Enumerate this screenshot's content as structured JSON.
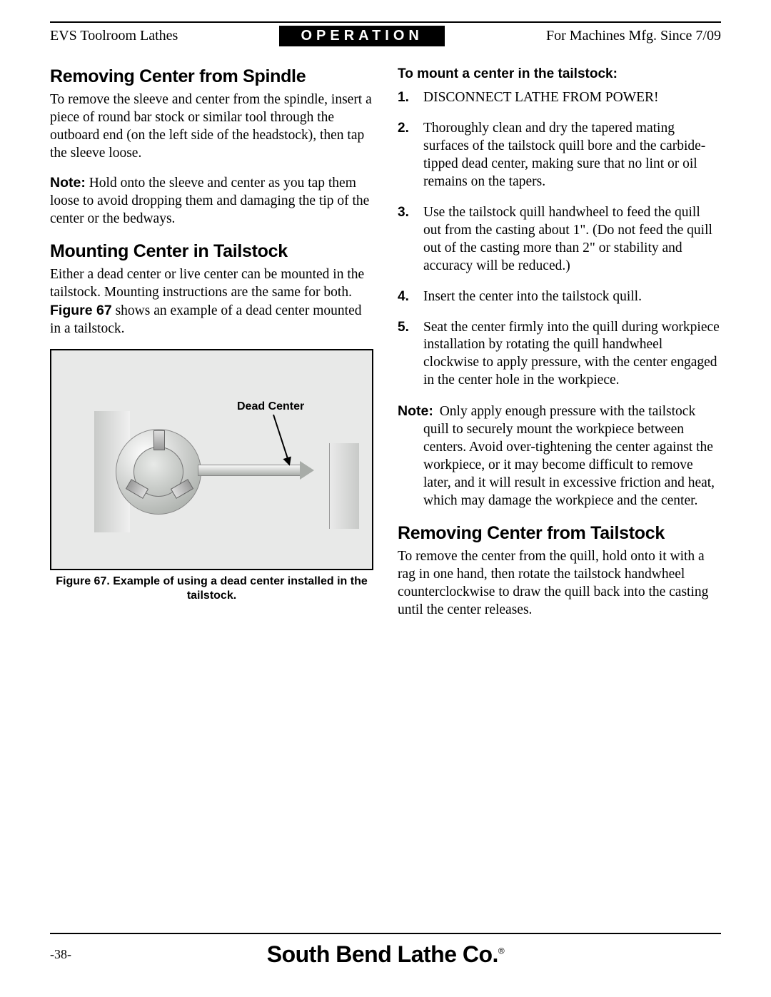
{
  "header": {
    "left": "EVS Toolroom Lathes",
    "center": "OPERATION",
    "right": "For Machines Mfg. Since 7/09"
  },
  "left_col": {
    "h1": "Removing Center from Spindle",
    "p1": "To remove the sleeve and center from the spindle, insert a piece of round bar stock or similar tool through the outboard end (on the left side of the headstock), then tap the sleeve loose.",
    "note_label": "Note:",
    "note_text": " Hold onto the sleeve and center as you tap them loose to avoid dropping them and damaging the tip of the center or the bedways.",
    "h2": "Mounting Center in Tailstock",
    "p2a": "Either a dead center or live center can be mounted in the tailstock. Mounting instructions are the same for both. ",
    "p2_bold": "Figure 67",
    "p2b": " shows an example of a dead center mounted in a tailstock.",
    "figure": {
      "callout": "Dead Center",
      "caption": "Figure 67. Example of using a dead center installed in the tailstock."
    }
  },
  "right_col": {
    "subhead": "To mount a center in the tailstock:",
    "steps": [
      "DISCONNECT LATHE FROM POWER!",
      "Thoroughly clean and dry the tapered mating surfaces of the tailstock quill bore and the carbide-tipped dead center, making sure that no lint or oil remains on the tapers.",
      "Use the tailstock quill handwheel to feed the quill out from the casting about 1\". (Do not feed the quill out of the casting more than 2\" or stability and accuracy will be reduced.)",
      "Insert the center into the tailstock quill.",
      "Seat the center firmly into the quill during workpiece installation by rotating the quill handwheel clockwise to apply pressure, with the center engaged in the center hole in the workpiece."
    ],
    "note_label": "Note:",
    "note_text": " Only apply enough pressure with the tailstock quill to securely mount the workpiece between centers. Avoid over-tightening the center against the workpiece, or it may become difficult to remove later, and it will result in excessive friction and heat, which may damage the workpiece and the center.",
    "h3": "Removing Center from Tailstock",
    "p3": "To remove the center from the quill, hold onto it with a rag in one hand, then rotate the tailstock handwheel counterclockwise to draw the quill back into the casting until the center releases."
  },
  "footer": {
    "page": "-38-",
    "brand": "South Bend Lathe Co.",
    "reg": "®"
  },
  "colors": {
    "text": "#000000",
    "background": "#ffffff",
    "header_bg": "#000000",
    "header_fg": "#ffffff"
  }
}
